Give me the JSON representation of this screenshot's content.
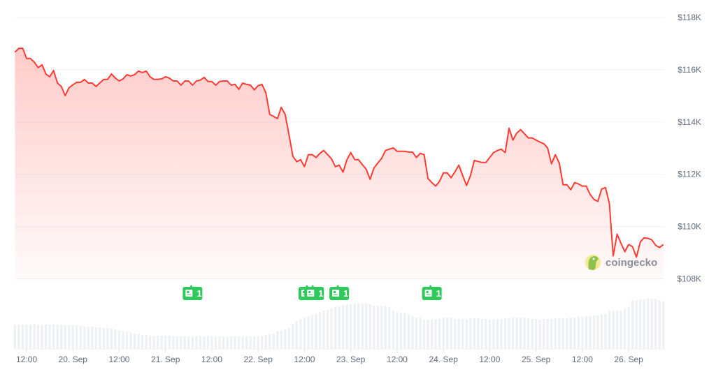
{
  "chart_data": {
    "type": "area",
    "title": "",
    "xlabel": "",
    "ylabel": "",
    "colors": {
      "line": "#ff3b33",
      "fill": "#ff3b33",
      "volume": "#eef0f4",
      "grid": "#f1f1f3",
      "news": "#2fc85a"
    },
    "grid": true,
    "ylim": [
      108,
      118
    ],
    "y_ticks": [
      {
        "value": 118,
        "label": "$118K"
      },
      {
        "value": 116,
        "label": "$116K"
      },
      {
        "value": 114,
        "label": "$114K"
      },
      {
        "value": 112,
        "label": "$112K"
      },
      {
        "value": 110,
        "label": "$110K"
      },
      {
        "value": 108,
        "label": "$108K"
      }
    ],
    "x_ticks": [
      {
        "time": "19 Sep 12:00",
        "label": "12:00"
      },
      {
        "time": "20 Sep 00:00",
        "label": "20. Sep"
      },
      {
        "time": "20 Sep 12:00",
        "label": "12:00"
      },
      {
        "time": "21 Sep 00:00",
        "label": "21. Sep"
      },
      {
        "time": "21 Sep 12:00",
        "label": "12:00"
      },
      {
        "time": "22 Sep 00:00",
        "label": "22. Sep"
      },
      {
        "time": "22 Sep 12:00",
        "label": "12:00"
      },
      {
        "time": "23 Sep 00:00",
        "label": "23. Sep"
      },
      {
        "time": "23 Sep 12:00",
        "label": "12:00"
      },
      {
        "time": "24 Sep 00:00",
        "label": "24. Sep"
      },
      {
        "time": "24 Sep 12:00",
        "label": "12:00"
      },
      {
        "time": "25 Sep 00:00",
        "label": "25. Sep"
      },
      {
        "time": "25 Sep 12:00",
        "label": "12:00"
      },
      {
        "time": "26 Sep 00:00",
        "label": "26. Sep"
      }
    ],
    "price_unit": "USD thousands",
    "x": [
      "19 Sep 09:00",
      "19 Sep 10:00",
      "19 Sep 11:00",
      "19 Sep 12:00",
      "19 Sep 13:00",
      "19 Sep 14:00",
      "19 Sep 15:00",
      "19 Sep 16:00",
      "19 Sep 17:00",
      "19 Sep 18:00",
      "19 Sep 19:00",
      "19 Sep 20:00",
      "19 Sep 21:00",
      "19 Sep 22:00",
      "19 Sep 23:00",
      "20 Sep 00:00",
      "20 Sep 01:00",
      "20 Sep 02:00",
      "20 Sep 03:00",
      "20 Sep 04:00",
      "20 Sep 05:00",
      "20 Sep 06:00",
      "20 Sep 07:00",
      "20 Sep 08:00",
      "20 Sep 09:00",
      "20 Sep 10:00",
      "20 Sep 11:00",
      "20 Sep 12:00",
      "20 Sep 13:00",
      "20 Sep 14:00",
      "20 Sep 15:00",
      "20 Sep 16:00",
      "20 Sep 17:00",
      "20 Sep 18:00",
      "20 Sep 19:00",
      "20 Sep 20:00",
      "20 Sep 21:00",
      "20 Sep 22:00",
      "20 Sep 23:00",
      "21 Sep 00:00",
      "21 Sep 01:00",
      "21 Sep 02:00",
      "21 Sep 03:00",
      "21 Sep 04:00",
      "21 Sep 05:00",
      "21 Sep 06:00",
      "21 Sep 07:00",
      "21 Sep 08:00",
      "21 Sep 09:00",
      "21 Sep 10:00",
      "21 Sep 11:00",
      "21 Sep 12:00",
      "21 Sep 13:00",
      "21 Sep 14:00",
      "21 Sep 15:00",
      "21 Sep 16:00",
      "21 Sep 17:00",
      "21 Sep 18:00",
      "21 Sep 19:00",
      "21 Sep 20:00",
      "21 Sep 21:00",
      "21 Sep 22:00",
      "21 Sep 23:00",
      "22 Sep 00:00",
      "22 Sep 01:00",
      "22 Sep 02:00",
      "22 Sep 03:00",
      "22 Sep 04:00",
      "22 Sep 05:00",
      "22 Sep 06:00",
      "22 Sep 07:00",
      "22 Sep 08:00",
      "22 Sep 09:00",
      "22 Sep 10:00",
      "22 Sep 11:00",
      "22 Sep 12:00",
      "22 Sep 13:00",
      "22 Sep 14:00",
      "22 Sep 15:00",
      "22 Sep 16:00",
      "22 Sep 17:00",
      "22 Sep 18:00",
      "22 Sep 19:00",
      "22 Sep 20:00",
      "22 Sep 21:00",
      "22 Sep 22:00",
      "22 Sep 23:00",
      "23 Sep 00:00",
      "23 Sep 01:00",
      "23 Sep 02:00",
      "23 Sep 03:00",
      "23 Sep 04:00",
      "23 Sep 05:00",
      "23 Sep 06:00",
      "23 Sep 07:00",
      "23 Sep 08:00",
      "23 Sep 09:00",
      "23 Sep 10:00",
      "23 Sep 11:00",
      "23 Sep 12:00",
      "23 Sep 13:00",
      "23 Sep 14:00",
      "23 Sep 15:00",
      "23 Sep 16:00",
      "23 Sep 17:00",
      "23 Sep 18:00",
      "23 Sep 19:00",
      "23 Sep 20:00",
      "23 Sep 21:00",
      "23 Sep 22:00",
      "23 Sep 23:00",
      "24 Sep 00:00",
      "24 Sep 01:00",
      "24 Sep 02:00",
      "24 Sep 03:00",
      "24 Sep 04:00",
      "24 Sep 05:00",
      "24 Sep 06:00",
      "24 Sep 07:00",
      "24 Sep 08:00",
      "24 Sep 09:00",
      "24 Sep 10:00",
      "24 Sep 11:00",
      "24 Sep 12:00",
      "24 Sep 13:00",
      "24 Sep 14:00",
      "24 Sep 15:00",
      "24 Sep 16:00",
      "24 Sep 17:00",
      "24 Sep 18:00",
      "24 Sep 19:00",
      "24 Sep 20:00",
      "24 Sep 21:00",
      "24 Sep 22:00",
      "24 Sep 23:00",
      "25 Sep 00:00",
      "25 Sep 01:00",
      "25 Sep 02:00",
      "25 Sep 03:00",
      "25 Sep 04:00",
      "25 Sep 05:00",
      "25 Sep 06:00",
      "25 Sep 07:00",
      "25 Sep 08:00",
      "25 Sep 09:00",
      "25 Sep 10:00",
      "25 Sep 11:00",
      "25 Sep 12:00",
      "25 Sep 13:00",
      "25 Sep 14:00",
      "25 Sep 15:00",
      "25 Sep 16:00",
      "25 Sep 17:00",
      "25 Sep 18:00",
      "25 Sep 19:00",
      "25 Sep 20:00",
      "25 Sep 21:00",
      "25 Sep 22:00",
      "25 Sep 23:00",
      "26 Sep 00:00",
      "26 Sep 01:00",
      "26 Sep 02:00",
      "26 Sep 03:00",
      "26 Sep 04:00",
      "26 Sep 05:00",
      "26 Sep 06:00",
      "26 Sep 07:00",
      "26 Sep 08:00",
      "26 Sep 09:00"
    ],
    "price": [
      116.67,
      116.82,
      116.82,
      116.43,
      116.43,
      116.29,
      116.08,
      116.19,
      115.84,
      115.73,
      115.97,
      115.49,
      115.36,
      115.01,
      115.31,
      115.42,
      115.52,
      115.52,
      115.63,
      115.49,
      115.49,
      115.36,
      115.5,
      115.63,
      115.63,
      115.84,
      115.68,
      115.57,
      115.65,
      115.81,
      115.76,
      115.81,
      115.95,
      115.89,
      115.95,
      115.73,
      115.63,
      115.63,
      115.65,
      115.73,
      115.68,
      115.57,
      115.57,
      115.41,
      115.57,
      115.57,
      115.41,
      115.57,
      115.6,
      115.71,
      115.55,
      115.55,
      115.41,
      115.55,
      115.57,
      115.57,
      115.41,
      115.44,
      115.25,
      115.49,
      115.44,
      115.41,
      115.23,
      115.39,
      115.44,
      115.12,
      114.29,
      114.21,
      114.13,
      114.56,
      114.29,
      113.5,
      112.69,
      112.48,
      112.56,
      112.29,
      112.75,
      112.75,
      112.64,
      112.8,
      112.91,
      112.75,
      112.59,
      112.29,
      112.35,
      112.08,
      112.56,
      112.83,
      112.56,
      112.56,
      112.37,
      112.19,
      111.81,
      112.24,
      112.43,
      112.61,
      112.91,
      112.96,
      113.01,
      112.88,
      112.88,
      112.88,
      112.85,
      112.85,
      112.64,
      112.8,
      112.75,
      111.84,
      111.68,
      111.55,
      111.73,
      112.05,
      112.05,
      111.87,
      112.1,
      112.35,
      111.95,
      111.57,
      111.95,
      112.53,
      112.49,
      112.45,
      112.45,
      112.64,
      112.83,
      112.91,
      112.96,
      112.83,
      113.76,
      113.31,
      113.57,
      113.71,
      113.55,
      113.39,
      113.39,
      113.31,
      113.23,
      113.17,
      113.01,
      112.4,
      112.75,
      112.43,
      111.6,
      111.6,
      111.41,
      111.68,
      111.63,
      111.55,
      111.55,
      111.23,
      111.04,
      110.96,
      111.44,
      111.49,
      110.88,
      108.88,
      109.71,
      109.36,
      109.04,
      109.31,
      109.23,
      108.83,
      109.41,
      109.57,
      109.55,
      109.49,
      109.28,
      109.2,
      109.31
    ],
    "volume_relative": [
      35,
      35,
      35,
      35,
      35,
      36,
      35,
      35,
      35,
      35,
      35,
      35,
      35,
      34,
      34,
      34,
      34,
      33,
      33,
      32,
      32,
      31,
      31,
      30,
      30,
      29,
      28,
      27,
      26,
      25,
      24,
      22,
      21,
      20,
      20,
      19,
      19,
      19,
      19,
      19,
      19,
      18,
      18,
      18,
      18,
      18,
      18,
      18,
      18,
      18,
      19,
      18,
      18,
      18,
      18,
      18,
      18,
      18,
      18,
      18,
      18,
      18,
      18,
      18,
      19,
      20,
      22,
      22,
      26,
      26,
      28,
      30,
      36,
      40,
      43,
      45,
      47,
      49,
      51,
      53,
      55,
      56,
      58,
      60,
      61,
      63,
      64,
      64,
      66,
      66,
      65,
      65,
      64,
      62,
      62,
      62,
      62,
      60,
      55,
      53,
      52,
      52,
      50,
      47,
      45,
      45,
      42,
      42,
      42,
      42,
      43,
      45,
      45,
      45,
      43,
      43,
      43,
      42,
      44,
      44,
      44,
      43,
      43,
      42,
      42,
      43,
      43,
      44,
      44,
      45,
      45,
      45,
      45,
      44,
      43,
      43,
      42,
      43,
      43,
      43,
      44,
      44,
      44,
      44,
      45,
      45,
      46,
      46,
      47,
      47,
      48,
      48,
      50,
      50,
      55,
      55,
      55,
      55,
      58,
      60,
      70,
      70,
      71,
      71,
      72,
      72,
      72,
      70,
      68
    ],
    "news_markers": [
      {
        "time": "21 Sep 07:00",
        "count": "1",
        "icon": "newspaper-icon"
      },
      {
        "time": "22 Sep 13:00",
        "count": "1",
        "icon": "newspaper-icon"
      },
      {
        "time": "22 Sep 14:30",
        "count": "1",
        "icon": "newspaper-icon"
      },
      {
        "time": "22 Sep 21:00",
        "count": "1",
        "icon": "newspaper-icon"
      },
      {
        "time": "23 Sep 21:00",
        "count": "1",
        "icon": "newspaper-icon"
      }
    ]
  },
  "watermark": {
    "text": "coingecko",
    "icon": "gecko-logo-icon"
  }
}
